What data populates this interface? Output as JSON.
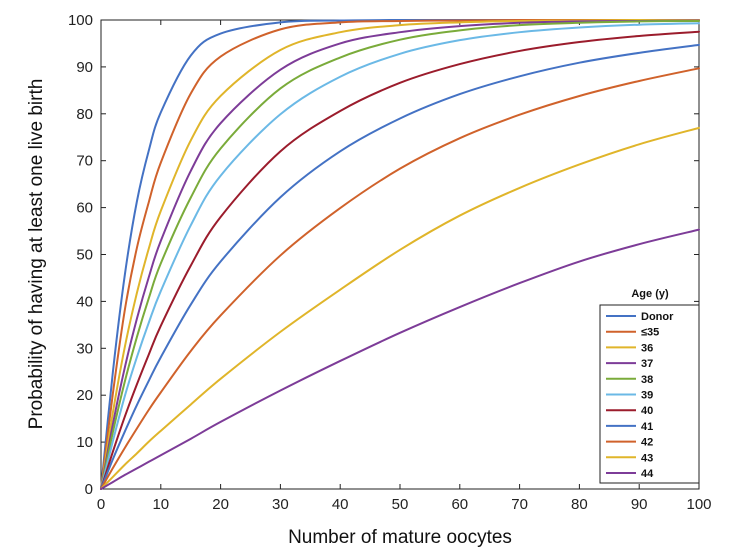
{
  "chart_data": {
    "type": "line",
    "xlabel": "Number of mature oocytes",
    "ylabel": "Probability of having at least one live birth",
    "xlim": [
      0,
      100
    ],
    "ylim": [
      0,
      100
    ],
    "xticks": [
      0,
      10,
      20,
      30,
      40,
      50,
      60,
      70,
      80,
      90,
      100
    ],
    "yticks": [
      0,
      10,
      20,
      30,
      40,
      50,
      60,
      70,
      80,
      90,
      100
    ],
    "grid": false,
    "legend_title": "Age (y)",
    "legend_position": "lower-right",
    "x": [
      0,
      2,
      4,
      6,
      8,
      10,
      15,
      20,
      30,
      40,
      50,
      60,
      70,
      80,
      90,
      100
    ],
    "series": [
      {
        "name": "Donor",
        "color": "#4472c4",
        "values": [
          0,
          25.1,
          45.8,
          61.3,
          72.2,
          80.3,
          92.4,
          97.1,
          99.5,
          99.9,
          100,
          100,
          100,
          100,
          100,
          100
        ]
      },
      {
        "name": "≤35",
        "color": "#d0622b",
        "values": [
          0,
          20.5,
          38.3,
          51.4,
          61.2,
          69.6,
          84.3,
          92.2,
          98.0,
          99.5,
          99.8,
          99.9,
          100,
          100,
          100,
          100
        ]
      },
      {
        "name": "36",
        "color": "#e0b52a",
        "values": [
          0,
          16.4,
          30.4,
          41.8,
          51.3,
          59.3,
          74.3,
          83.8,
          93.6,
          97.4,
          98.9,
          99.5,
          99.8,
          99.9,
          100,
          100
        ]
      },
      {
        "name": "37",
        "color": "#7d3c98",
        "values": [
          0,
          13.9,
          26.0,
          36.3,
          45.2,
          52.9,
          67.8,
          78.0,
          89.4,
          95.0,
          97.4,
          98.7,
          99.4,
          99.7,
          99.8,
          99.9
        ]
      },
      {
        "name": "38",
        "color": "#7aab3a",
        "values": [
          0,
          12.2,
          23.0,
          32.4,
          40.7,
          48.1,
          62.1,
          72.6,
          85.4,
          92.0,
          95.8,
          97.8,
          98.9,
          99.4,
          99.7,
          99.8
        ]
      },
      {
        "name": "39",
        "color": "#6bb9e6",
        "values": [
          0,
          10.3,
          19.9,
          28.1,
          35.5,
          42.2,
          56.2,
          66.8,
          79.9,
          87.9,
          92.8,
          95.7,
          97.4,
          98.4,
          99.0,
          99.3
        ]
      },
      {
        "name": "40",
        "color": "#9b1c2c",
        "values": [
          0,
          8.0,
          15.5,
          22.3,
          28.7,
          34.8,
          47.6,
          58.0,
          72.0,
          80.6,
          86.6,
          90.6,
          93.4,
          95.3,
          96.6,
          97.5
        ]
      },
      {
        "name": "41",
        "color": "#4472c4",
        "values": [
          0,
          6.4,
          12.3,
          17.9,
          23.1,
          28.1,
          39.3,
          48.5,
          62.2,
          72.0,
          79.0,
          84.2,
          88.0,
          90.9,
          93.0,
          94.7
        ]
      },
      {
        "name": "42",
        "color": "#d0622b",
        "values": [
          0,
          4.5,
          8.8,
          12.9,
          16.9,
          20.6,
          29.4,
          37.0,
          49.8,
          59.9,
          68.3,
          74.8,
          79.8,
          83.8,
          87.0,
          89.7
        ]
      },
      {
        "name": "43",
        "color": "#e0b52a",
        "values": [
          0,
          2.6,
          5.2,
          7.6,
          10.1,
          12.4,
          18.0,
          23.5,
          33.5,
          42.5,
          51.0,
          58.3,
          64.2,
          69.2,
          73.5,
          77.0
        ]
      },
      {
        "name": "44",
        "color": "#7d3c98",
        "values": [
          0,
          1.5,
          3.0,
          4.4,
          5.8,
          7.2,
          10.7,
          14.3,
          21.0,
          27.3,
          33.3,
          38.8,
          43.9,
          48.5,
          52.2,
          55.3
        ]
      }
    ]
  }
}
